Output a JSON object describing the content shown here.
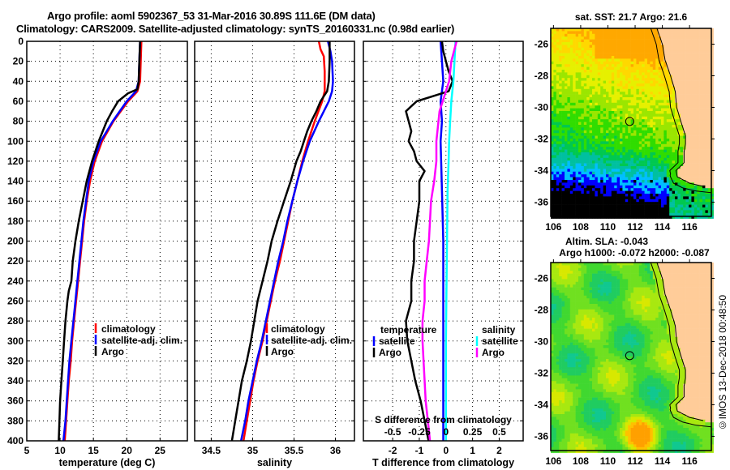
{
  "titles": {
    "line1": "Argo profile: aoml 5902367_53 31-Mar-2016 30.89S 111.6E (DM data)",
    "line2": "Climatology: CARS2009. Satellite-adjusted climatology: synTS_20160331.nc (0.98d earlier)"
  },
  "stamp": "©IMOS 13-Dec-2018 00:48:50",
  "colors": {
    "climatology": "#ff0000",
    "satellite": "#0000ff",
    "argo": "#000000",
    "sal_satellite": "#00ffff",
    "sal_argo": "#ff00ff",
    "land": "#ffcc99"
  },
  "chart_data": [
    {
      "type": "line",
      "name": "temperature-profile",
      "xlabel": "temperature (deg C)",
      "ylabel": "depth",
      "xlim": [
        5,
        29.1
      ],
      "ylim": [
        400,
        0
      ],
      "xticks": [
        5,
        10,
        15,
        20,
        25
      ],
      "yticks": [
        0,
        20,
        40,
        60,
        80,
        100,
        120,
        140,
        160,
        180,
        200,
        220,
        240,
        260,
        280,
        300,
        320,
        340,
        360,
        380,
        400
      ],
      "grid": true,
      "legend": {
        "position": "middle-right",
        "entries": [
          "climatology",
          "satellite-adj. clim.",
          "Argo"
        ]
      },
      "series": [
        {
          "name": "climatology",
          "color": "#ff0000",
          "depth": [
            0,
            20,
            40,
            50,
            60,
            80,
            100,
            120,
            140,
            160,
            180,
            200,
            220,
            240,
            260,
            280,
            300,
            320,
            340,
            360,
            380,
            400
          ],
          "values": [
            22.2,
            22.1,
            22.0,
            21.6,
            20.2,
            18.0,
            16.3,
            15.2,
            14.5,
            14.0,
            13.6,
            13.3,
            13.0,
            12.7,
            12.4,
            12.1,
            11.8,
            11.6,
            11.3,
            11.1,
            10.9,
            10.7
          ]
        },
        {
          "name": "satellite-adj. clim.",
          "color": "#0000ff",
          "depth": [
            0,
            20,
            40,
            50,
            60,
            80,
            100,
            120,
            140,
            160,
            180,
            200,
            220,
            240,
            260,
            280,
            300,
            320,
            340,
            360,
            380,
            400
          ],
          "values": [
            22.0,
            21.9,
            21.8,
            21.4,
            20.0,
            17.9,
            16.1,
            15.0,
            14.3,
            13.9,
            13.5,
            13.2,
            12.9,
            12.6,
            12.3,
            12.0,
            11.7,
            11.4,
            11.2,
            11.0,
            10.8,
            10.5
          ]
        },
        {
          "name": "Argo",
          "color": "#000000",
          "depth": [
            0,
            20,
            40,
            48,
            52,
            60,
            70,
            80,
            90,
            100,
            110,
            120,
            140,
            160,
            180,
            200,
            220,
            240,
            250,
            260,
            280,
            300,
            320,
            340,
            360,
            380,
            400
          ],
          "values": [
            22.0,
            21.9,
            21.8,
            21.6,
            20.2,
            18.7,
            17.8,
            17.0,
            16.4,
            15.8,
            15.3,
            14.8,
            14.0,
            13.4,
            12.8,
            12.3,
            11.9,
            11.7,
            11.3,
            11.1,
            10.8,
            10.6,
            10.4,
            10.2,
            10.0,
            9.9,
            9.8
          ]
        }
      ]
    },
    {
      "type": "line",
      "name": "salinity-profile",
      "xlabel": "salinity",
      "ylabel": "depth",
      "xlim": [
        34.3,
        36.23
      ],
      "ylim": [
        400,
        0
      ],
      "xticks": [
        34.5,
        35,
        35.5,
        36
      ],
      "grid": true,
      "legend": {
        "position": "middle-center",
        "entries": [
          "climatology",
          "satellite-adj. clim.",
          "Argo"
        ]
      },
      "series": [
        {
          "name": "climatology",
          "color": "#ff0000",
          "depth": [
            0,
            8,
            15,
            30,
            40,
            50,
            60,
            80,
            100,
            120,
            140,
            160,
            180,
            200,
            220,
            240,
            260,
            280,
            300,
            320,
            340,
            360,
            380,
            400
          ],
          "values": [
            35.8,
            35.82,
            35.86,
            35.87,
            35.87,
            35.87,
            35.84,
            35.75,
            35.67,
            35.6,
            35.54,
            35.48,
            35.43,
            35.38,
            35.33,
            35.27,
            35.22,
            35.17,
            35.12,
            35.06,
            35.01,
            34.97,
            34.93,
            34.89
          ]
        },
        {
          "name": "satellite-adj. clim.",
          "color": "#0000ff",
          "depth": [
            0,
            10,
            20,
            40,
            50,
            60,
            80,
            100,
            120,
            140,
            160,
            180,
            200,
            220,
            240,
            260,
            280,
            300,
            320,
            340,
            360,
            380,
            400
          ],
          "values": [
            35.91,
            35.94,
            35.96,
            35.97,
            35.96,
            35.92,
            35.8,
            35.69,
            35.61,
            35.54,
            35.48,
            35.42,
            35.37,
            35.31,
            35.26,
            35.21,
            35.16,
            35.11,
            35.05,
            35.0,
            34.95,
            34.91,
            34.86
          ]
        },
        {
          "name": "Argo",
          "color": "#000000",
          "depth": [
            0,
            20,
            40,
            50,
            55,
            60,
            70,
            80,
            90,
            100,
            110,
            120,
            140,
            160,
            180,
            200,
            220,
            240,
            260,
            280,
            300,
            320,
            340,
            360,
            380,
            400
          ],
          "values": [
            35.93,
            35.93,
            35.92,
            35.9,
            35.86,
            35.82,
            35.77,
            35.71,
            35.66,
            35.62,
            35.58,
            35.53,
            35.46,
            35.38,
            35.3,
            35.23,
            35.18,
            35.12,
            35.06,
            35.02,
            34.98,
            34.93,
            34.87,
            34.83,
            34.79,
            34.75
          ]
        }
      ]
    },
    {
      "type": "line",
      "name": "difference-profile",
      "xlabel": "T difference from climatology",
      "x2label": "S difference from climatology",
      "ylabel": "depth",
      "xlim": [
        -3.1,
        2.9
      ],
      "ylim": [
        400,
        0
      ],
      "xticks": [
        -2,
        -1,
        0,
        1,
        2
      ],
      "x2ticks": [
        "-0.5",
        "-0.25",
        "0",
        "0.25",
        "0.5"
      ],
      "grid": true,
      "legend": {
        "position": "lower-middle",
        "temperature_title": "temperature",
        "salinity_title": "salinity",
        "entries": [
          "satellite",
          "Argo",
          "satellite",
          "Argo"
        ]
      },
      "series": [
        {
          "name": "temperature satellite",
          "color": "#0000ff",
          "depth": [
            0,
            20,
            40,
            60,
            80,
            100,
            150,
            200,
            250,
            300,
            350,
            400
          ],
          "values": [
            -0.2,
            -0.15,
            -0.1,
            -0.2,
            -0.15,
            -0.2,
            -0.15,
            -0.1,
            -0.1,
            -0.1,
            -0.1,
            -0.1
          ]
        },
        {
          "name": "temperature Argo",
          "color": "#000000",
          "depth": [
            0,
            10,
            20,
            30,
            40,
            50,
            55,
            60,
            65,
            70,
            80,
            90,
            100,
            110,
            120,
            130,
            140,
            160,
            180,
            200,
            220,
            240,
            260,
            280,
            300,
            320,
            340,
            360,
            380,
            400
          ],
          "values": [
            -0.15,
            -0.1,
            0.0,
            0.1,
            0.25,
            0.1,
            -0.5,
            -1.1,
            -1.3,
            -1.5,
            -1.4,
            -1.3,
            -1.4,
            -1.2,
            -1.1,
            -0.8,
            -1.0,
            -1.0,
            -1.1,
            -1.2,
            -1.2,
            -1.3,
            -1.3,
            -1.5,
            -1.45,
            -1.3,
            -1.15,
            -0.95,
            -0.8,
            -0.65
          ]
        },
        {
          "name": "salinity satellite",
          "color": "#00ffff",
          "depth": [
            0,
            20,
            40,
            60,
            80,
            100,
            120,
            150,
            200,
            250,
            300,
            350,
            400
          ],
          "values": [
            0.09,
            0.08,
            0.07,
            0.05,
            0.04,
            0.03,
            0.025,
            0.015,
            0.01,
            0.005,
            0.0,
            0.0,
            0.0
          ]
        },
        {
          "name": "salinity Argo",
          "color": "#ff00ff",
          "depth": [
            0,
            20,
            40,
            60,
            70,
            80,
            100,
            120,
            140,
            160,
            180,
            200,
            220,
            240,
            260,
            280,
            300,
            320,
            340,
            360,
            380,
            400
          ],
          "values": [
            0.1,
            0.05,
            0.03,
            -0.03,
            -0.06,
            -0.07,
            -0.09,
            -0.09,
            -0.11,
            -0.14,
            -0.15,
            -0.16,
            -0.18,
            -0.2,
            -0.2,
            -0.22,
            -0.22,
            -0.21,
            -0.2,
            -0.19,
            -0.17,
            -0.15
          ]
        }
      ]
    },
    {
      "type": "heatmap",
      "name": "sst-map",
      "title": "sat. SST: 21.7 Argo: 21.6",
      "xlim": [
        105.8,
        117.6
      ],
      "ylim": [
        -36.9,
        -25.0
      ],
      "xticks": [
        106,
        108,
        110,
        112,
        114,
        116
      ],
      "yticks": [
        -26,
        -28,
        -30,
        -32,
        -34,
        -36
      ],
      "marker": {
        "lon": 111.6,
        "lat": -30.89
      }
    },
    {
      "type": "heatmap",
      "name": "sla-map",
      "title_line1": "Altim. SLA: -0.043",
      "title_line2": "Argo h1000: -0.072 h2000: -0.087",
      "xlim": [
        105.8,
        117.6
      ],
      "ylim": [
        -36.9,
        -25.0
      ],
      "xticks": [
        106,
        108,
        110,
        112,
        114,
        116
      ],
      "yticks": [
        -26,
        -28,
        -30,
        -32,
        -34,
        -36
      ],
      "marker": {
        "lon": 111.6,
        "lat": -30.89
      }
    }
  ]
}
